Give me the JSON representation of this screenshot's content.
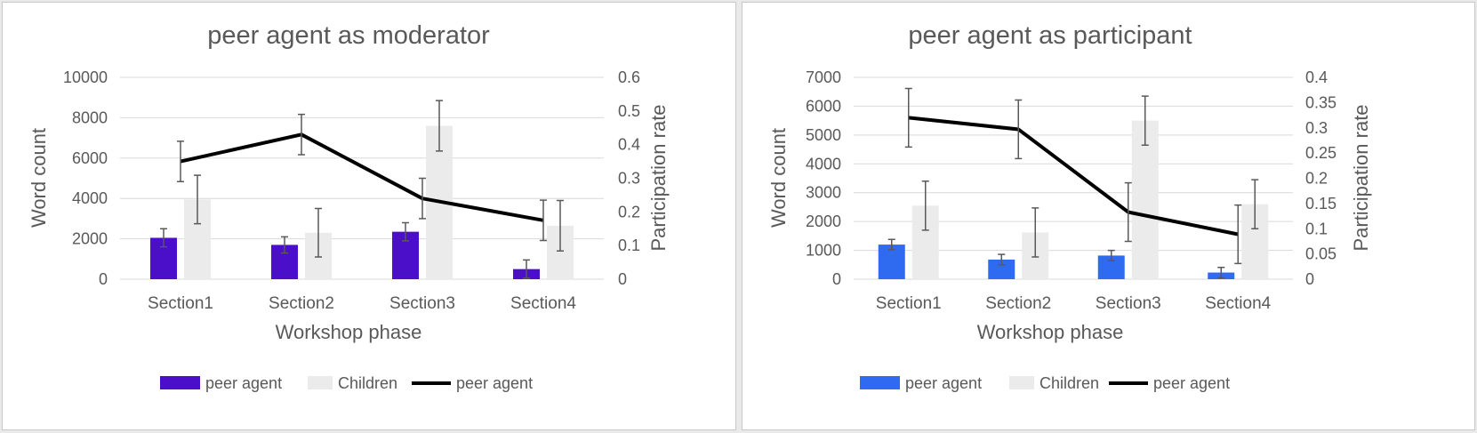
{
  "chart_data": [
    {
      "type": "bar",
      "title": "peer agent as moderator",
      "xlabel": "Workshop phase",
      "ylabel": "Word count",
      "y2label": "Participation rate",
      "categories": [
        "Section1",
        "Section2",
        "Section3",
        "Section4"
      ],
      "ylim": [
        0,
        10000
      ],
      "yticks": [
        0,
        2000,
        4000,
        6000,
        8000,
        10000
      ],
      "y2lim": [
        0,
        0.6
      ],
      "y2ticks": [
        "0",
        "0.1",
        "0.2",
        "0.3",
        "0.4",
        "0.5",
        "0.6"
      ],
      "grid": true,
      "legend_position": "bottom",
      "series": [
        {
          "name": "peer agent",
          "kind": "bar",
          "axis": "left",
          "color": "#4B0FC9",
          "values": [
            2050,
            1700,
            2350,
            500
          ],
          "errors": [
            450,
            400,
            450,
            450
          ]
        },
        {
          "name": "Children",
          "kind": "bar",
          "axis": "left",
          "color": "#EBEBEB",
          "values": [
            3950,
            2300,
            7600,
            2650
          ],
          "errors": [
            1200,
            1200,
            1250,
            1250
          ]
        },
        {
          "name": "peer agent",
          "kind": "line",
          "axis": "right",
          "color": "#000000",
          "values": [
            0.35,
            0.43,
            0.24,
            0.175
          ],
          "errors": [
            0.06,
            0.06,
            0.06,
            0.06
          ]
        }
      ]
    },
    {
      "type": "bar",
      "title": "peer agent as participant",
      "xlabel": "Workshop phase",
      "ylabel": "Word count",
      "y2label": "Participation rate",
      "categories": [
        "Section1",
        "Section2",
        "Section3",
        "Section4"
      ],
      "ylim": [
        0,
        7000
      ],
      "yticks": [
        0,
        1000,
        2000,
        3000,
        4000,
        5000,
        6000,
        7000
      ],
      "y2lim": [
        0,
        0.4
      ],
      "y2ticks": [
        "0",
        "0.05",
        "0.1",
        "0.15",
        "0.2",
        "0.25",
        "0.3",
        "0.35",
        "0.4"
      ],
      "grid": true,
      "legend_position": "bottom",
      "series": [
        {
          "name": "peer agent",
          "kind": "bar",
          "axis": "left",
          "color": "#2E6BF0",
          "values": [
            1200,
            680,
            820,
            230
          ],
          "errors": [
            180,
            180,
            180,
            180
          ]
        },
        {
          "name": "Children",
          "kind": "bar",
          "axis": "left",
          "color": "#EBEBEB",
          "values": [
            2550,
            1620,
            5500,
            2600
          ],
          "errors": [
            850,
            850,
            850,
            850
          ]
        },
        {
          "name": "peer agent",
          "kind": "line",
          "axis": "right",
          "color": "#000000",
          "values": [
            0.32,
            0.297,
            0.133,
            0.089
          ],
          "errors": [
            0.058,
            0.058,
            0.058,
            0.058
          ]
        }
      ]
    }
  ]
}
